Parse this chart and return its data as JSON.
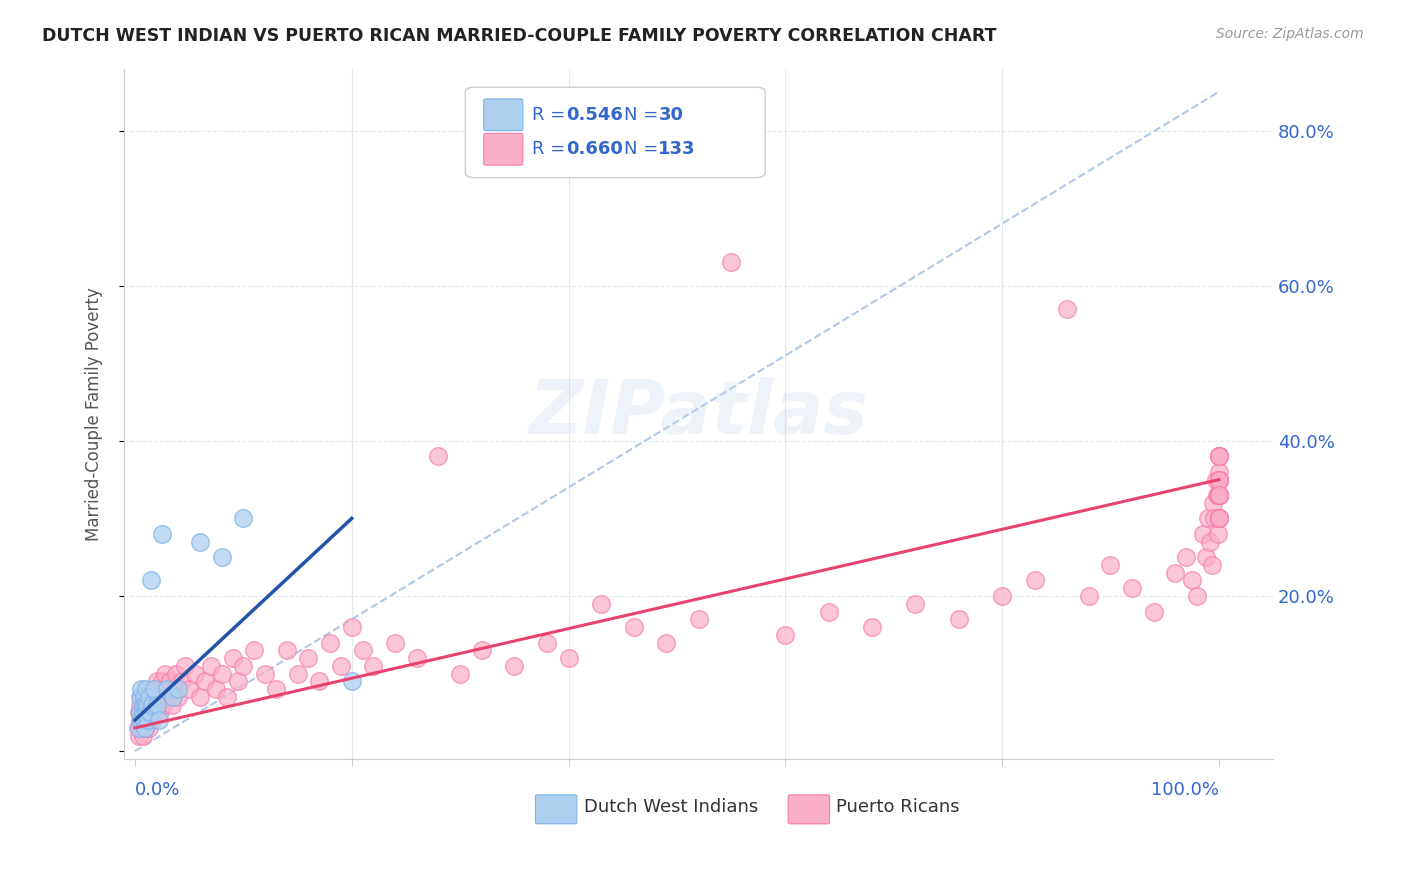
{
  "title": "DUTCH WEST INDIAN VS PUERTO RICAN MARRIED-COUPLE FAMILY POVERTY CORRELATION CHART",
  "source": "Source: ZipAtlas.com",
  "ylabel": "Married-Couple Family Poverty",
  "legend_r1": "0.546",
  "legend_n1": "30",
  "legend_r2": "0.660",
  "legend_n2": "133",
  "legend_label1": "Dutch West Indians",
  "legend_label2": "Puerto Ricans",
  "watermark": "ZIPatlas",
  "blue_color": "#7EB3E8",
  "pink_color": "#F87BAC",
  "blue_fill_color": "#AED0F0",
  "pink_fill_color": "#FAAEC8",
  "blue_line_color": "#2255AA",
  "pink_line_color": "#E8436E",
  "dashed_line_color": "#B0C8E8",
  "axis_label_color": "#3366CC",
  "title_color": "#222222",
  "grid_color": "#E0E8F0",
  "blue_x": [
    0.004,
    0.005,
    0.005,
    0.006,
    0.006,
    0.007,
    0.007,
    0.008,
    0.008,
    0.009,
    0.009,
    0.01,
    0.01,
    0.011,
    0.012,
    0.013,
    0.014,
    0.015,
    0.016,
    0.018,
    0.02,
    0.022,
    0.025,
    0.03,
    0.035,
    0.04,
    0.06,
    0.08,
    0.1,
    0.2
  ],
  "blue_y": [
    0.03,
    0.05,
    0.07,
    0.04,
    0.08,
    0.05,
    0.06,
    0.04,
    0.07,
    0.03,
    0.06,
    0.05,
    0.08,
    0.06,
    0.04,
    0.07,
    0.05,
    0.22,
    0.06,
    0.08,
    0.06,
    0.04,
    0.28,
    0.08,
    0.07,
    0.08,
    0.27,
    0.25,
    0.3,
    0.09
  ],
  "pink_x": [
    0.003,
    0.004,
    0.004,
    0.005,
    0.005,
    0.006,
    0.006,
    0.007,
    0.007,
    0.008,
    0.008,
    0.009,
    0.01,
    0.01,
    0.011,
    0.012,
    0.013,
    0.014,
    0.015,
    0.016,
    0.017,
    0.018,
    0.019,
    0.02,
    0.02,
    0.021,
    0.022,
    0.023,
    0.024,
    0.025,
    0.026,
    0.027,
    0.028,
    0.03,
    0.032,
    0.034,
    0.036,
    0.038,
    0.04,
    0.043,
    0.046,
    0.05,
    0.055,
    0.06,
    0.065,
    0.07,
    0.075,
    0.08,
    0.085,
    0.09,
    0.095,
    0.1,
    0.11,
    0.12,
    0.13,
    0.14,
    0.15,
    0.16,
    0.17,
    0.18,
    0.19,
    0.2,
    0.21,
    0.22,
    0.24,
    0.26,
    0.28,
    0.3,
    0.32,
    0.35,
    0.38,
    0.4,
    0.43,
    0.46,
    0.49,
    0.52,
    0.55,
    0.6,
    0.64,
    0.68,
    0.72,
    0.76,
    0.8,
    0.83,
    0.86,
    0.88,
    0.9,
    0.92,
    0.94,
    0.96,
    0.97,
    0.975,
    0.98,
    0.985,
    0.988,
    0.99,
    0.992,
    0.994,
    0.995,
    0.996,
    0.997,
    0.998,
    0.999,
    1.0,
    1.0,
    1.0,
    1.0,
    1.0,
    1.0,
    1.0,
    1.0,
    1.0,
    1.0,
    1.0,
    1.0,
    1.0,
    1.0,
    1.0,
    1.0,
    1.0,
    1.0,
    1.0,
    1.0,
    1.0,
    1.0,
    1.0,
    1.0,
    1.0,
    1.0,
    1.0,
    1.0,
    1.0,
    1.0
  ],
  "pink_y": [
    0.03,
    0.05,
    0.02,
    0.04,
    0.06,
    0.03,
    0.07,
    0.05,
    0.02,
    0.04,
    0.06,
    0.03,
    0.05,
    0.07,
    0.04,
    0.06,
    0.03,
    0.05,
    0.07,
    0.04,
    0.06,
    0.08,
    0.05,
    0.07,
    0.09,
    0.06,
    0.08,
    0.05,
    0.07,
    0.09,
    0.06,
    0.08,
    0.1,
    0.07,
    0.09,
    0.06,
    0.08,
    0.1,
    0.07,
    0.09,
    0.11,
    0.08,
    0.1,
    0.07,
    0.09,
    0.11,
    0.08,
    0.1,
    0.07,
    0.12,
    0.09,
    0.11,
    0.13,
    0.1,
    0.08,
    0.13,
    0.1,
    0.12,
    0.09,
    0.14,
    0.11,
    0.16,
    0.13,
    0.11,
    0.14,
    0.12,
    0.38,
    0.1,
    0.13,
    0.11,
    0.14,
    0.12,
    0.19,
    0.16,
    0.14,
    0.17,
    0.63,
    0.15,
    0.18,
    0.16,
    0.19,
    0.17,
    0.2,
    0.22,
    0.57,
    0.2,
    0.24,
    0.21,
    0.18,
    0.23,
    0.25,
    0.22,
    0.2,
    0.28,
    0.25,
    0.3,
    0.27,
    0.24,
    0.32,
    0.3,
    0.35,
    0.33,
    0.28,
    0.35,
    0.33,
    0.3,
    0.38,
    0.36,
    0.33,
    0.3,
    0.35,
    0.33,
    0.38,
    0.35,
    0.33,
    0.3,
    0.35,
    0.33,
    0.38,
    0.35,
    0.33,
    0.3,
    0.35,
    0.33,
    0.38,
    0.35,
    0.33,
    0.3,
    0.35,
    0.33,
    0.38,
    0.35,
    0.33
  ],
  "blue_line_x": [
    0.0,
    0.2
  ],
  "blue_line_y": [
    0.04,
    0.3
  ],
  "pink_line_x": [
    0.0,
    1.0
  ],
  "pink_line_y": [
    0.03,
    0.35
  ],
  "dash_line_x": [
    0.0,
    1.0
  ],
  "dash_line_y": [
    0.0,
    0.85
  ],
  "xlim": [
    -0.01,
    1.05
  ],
  "ylim": [
    -0.01,
    0.88
  ],
  "yticks": [
    0.0,
    0.2,
    0.4,
    0.6,
    0.8
  ],
  "ytick_labels": [
    "",
    "20.0%",
    "40.0%",
    "60.0%",
    "80.0%"
  ]
}
